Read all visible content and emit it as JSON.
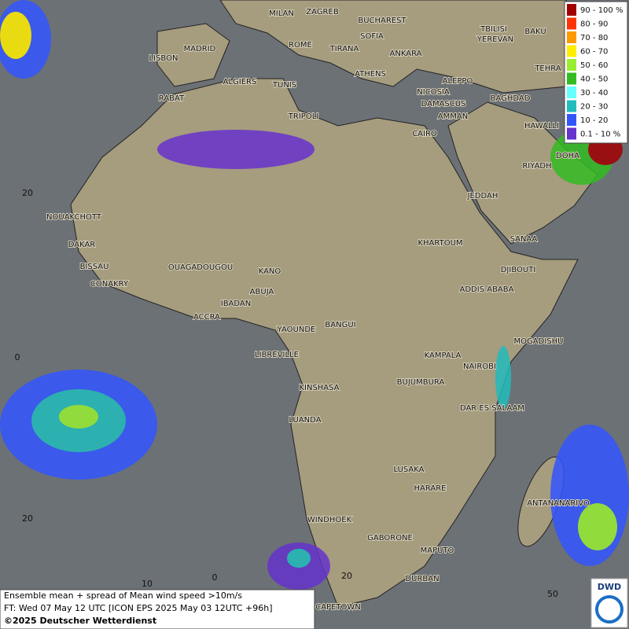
{
  "map": {
    "cities": [
      "MILAN",
      "ZAGREB",
      "BUCHAREST",
      "SOFIA",
      "ROME",
      "TIRANA",
      "MADRID",
      "LISBON",
      "ANKARA",
      "TBILISI",
      "YEREVAN",
      "BAKU",
      "TEHRA",
      "ATHENS",
      "ALGIERS",
      "TUNIS",
      "ALEPPO",
      "RABAT",
      "NICOSIA",
      "BAGHDAD",
      "DAMASCUS",
      "AMMAN",
      "TRIPOLI",
      "HAWALLI",
      "CAIRO",
      "DOHA",
      "RIYADH",
      "JEDDAH",
      "NOUAKCHOTT",
      "SANAA",
      "KHARTOUM",
      "DAKAR",
      "BISSAU",
      "DJIBOUTI",
      "OUAGADOUGOU",
      "KANO",
      "CONAKRY",
      "ADDIS ABABA",
      "ABUJA",
      "IBADAN",
      "ACCRA",
      "YAOUNDE",
      "BANGUI",
      "MOGADISHU",
      "LIBREVILLE",
      "KAMPALA",
      "NAIROBI",
      "KINSHASA",
      "BUJUMBURA",
      "DAR ES SALAAM",
      "LUANDA",
      "LUSAKA",
      "HARARE",
      "ANTANANARIVO",
      "WINDHOEK",
      "GABORONE",
      "MAPUTO",
      "DURBAN",
      "CAPETOWN"
    ],
    "lat_labels": [
      "20",
      "0",
      "20"
    ],
    "lon_labels": [
      "10",
      "0",
      "20",
      "50"
    ]
  },
  "legend": [
    {
      "label": "90 - 100 %",
      "color": "#a00000"
    },
    {
      "label": "80 - 90",
      "color": "#ff3300"
    },
    {
      "label": "70 - 80",
      "color": "#ff9900"
    },
    {
      "label": "60 - 70",
      "color": "#ffee00"
    },
    {
      "label": "50 - 60",
      "color": "#99ee33"
    },
    {
      "label": "40 - 50",
      "color": "#33bb22"
    },
    {
      "label": "30 - 40",
      "color": "#66ffff"
    },
    {
      "label": "20 - 30",
      "color": "#22bbbb"
    },
    {
      "label": "10 - 20",
      "color": "#3355ff"
    },
    {
      "label": "0.1 - 10 %",
      "color": "#6633cc"
    }
  ],
  "footer": {
    "description": "Ensemble mean + spread of Mean wind speed >10m/s",
    "forecast": "FT: Wed 07 May 12 UTC [ICON EPS 2025 May 03 12UTC +96h]",
    "copyright": "©2025 Deutscher Wetterdienst"
  },
  "logo": "DWD"
}
